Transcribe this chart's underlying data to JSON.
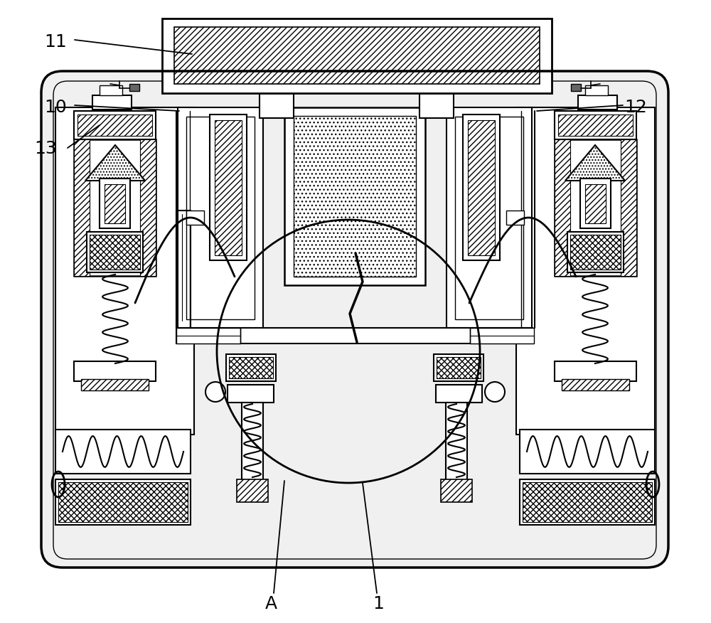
{
  "bg_color": "#ffffff",
  "line_color": "#000000",
  "fig_width": 10.0,
  "fig_height": 8.76,
  "label_fontsize": 18
}
